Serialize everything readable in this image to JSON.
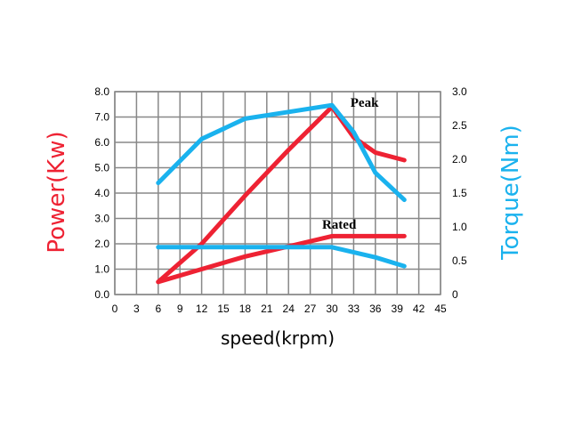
{
  "chart_data": {
    "type": "line",
    "title": "",
    "xlabel": "speed(krpm)",
    "ylabel_left": "Power(Kw)",
    "ylabel_right": "Torque(Nm)",
    "x_ticks": [
      "0",
      "3",
      "6",
      "9",
      "12",
      "15",
      "18",
      "21",
      "24",
      "27",
      "30",
      "33",
      "36",
      "39",
      "42",
      "45"
    ],
    "y_left_ticks": [
      "0.0",
      "1.0",
      "2.0",
      "3.0",
      "4.0",
      "5.0",
      "6.0",
      "7.0",
      "8.0"
    ],
    "y_right_ticks": [
      "0",
      "0.5",
      "1.0",
      "1.5",
      "2.0",
      "2.5",
      "3.0"
    ],
    "xlim": [
      0,
      45
    ],
    "ylim_left": [
      0,
      8
    ],
    "ylim_right": [
      0,
      3
    ],
    "grid": true,
    "annotations": [
      {
        "text": "Peak",
        "x": 34.5,
        "y_left": 7.4
      },
      {
        "text": "Rated",
        "x": 31,
        "y_left": 2.6
      }
    ],
    "series": [
      {
        "axis": "left",
        "color": "#ee2233",
        "points": [
          [
            6,
            0.5
          ],
          [
            12,
            2.0
          ],
          [
            18,
            3.9
          ],
          [
            24,
            5.7
          ],
          [
            30,
            7.4
          ],
          [
            33,
            6.2
          ],
          [
            36,
            5.6
          ],
          [
            40,
            5.3
          ]
        ]
      },
      {
        "axis": "left",
        "color": "#ee2233",
        "points": [
          [
            6,
            0.5
          ],
          [
            12,
            1.0
          ],
          [
            18,
            1.5
          ],
          [
            24,
            1.9
          ],
          [
            30,
            2.3
          ],
          [
            36,
            2.3
          ],
          [
            40,
            2.3
          ]
        ]
      },
      {
        "axis": "right",
        "color": "#1ab2ee",
        "points": [
          [
            6,
            1.65
          ],
          [
            12,
            2.3
          ],
          [
            18,
            2.6
          ],
          [
            24,
            2.7
          ],
          [
            30,
            2.8
          ],
          [
            33,
            2.4
          ],
          [
            36,
            1.8
          ],
          [
            40,
            1.4
          ]
        ]
      },
      {
        "axis": "right",
        "color": "#1ab2ee",
        "points": [
          [
            6,
            0.7
          ],
          [
            12,
            0.7
          ],
          [
            18,
            0.7
          ],
          [
            24,
            0.7
          ],
          [
            30,
            0.7
          ],
          [
            36,
            0.55
          ],
          [
            40,
            0.42
          ]
        ]
      }
    ]
  },
  "colors": {
    "power_label": "#ee2233",
    "torque_label": "#1ab2ee",
    "grid": "#888888",
    "plot_bg": "#ffffff"
  }
}
